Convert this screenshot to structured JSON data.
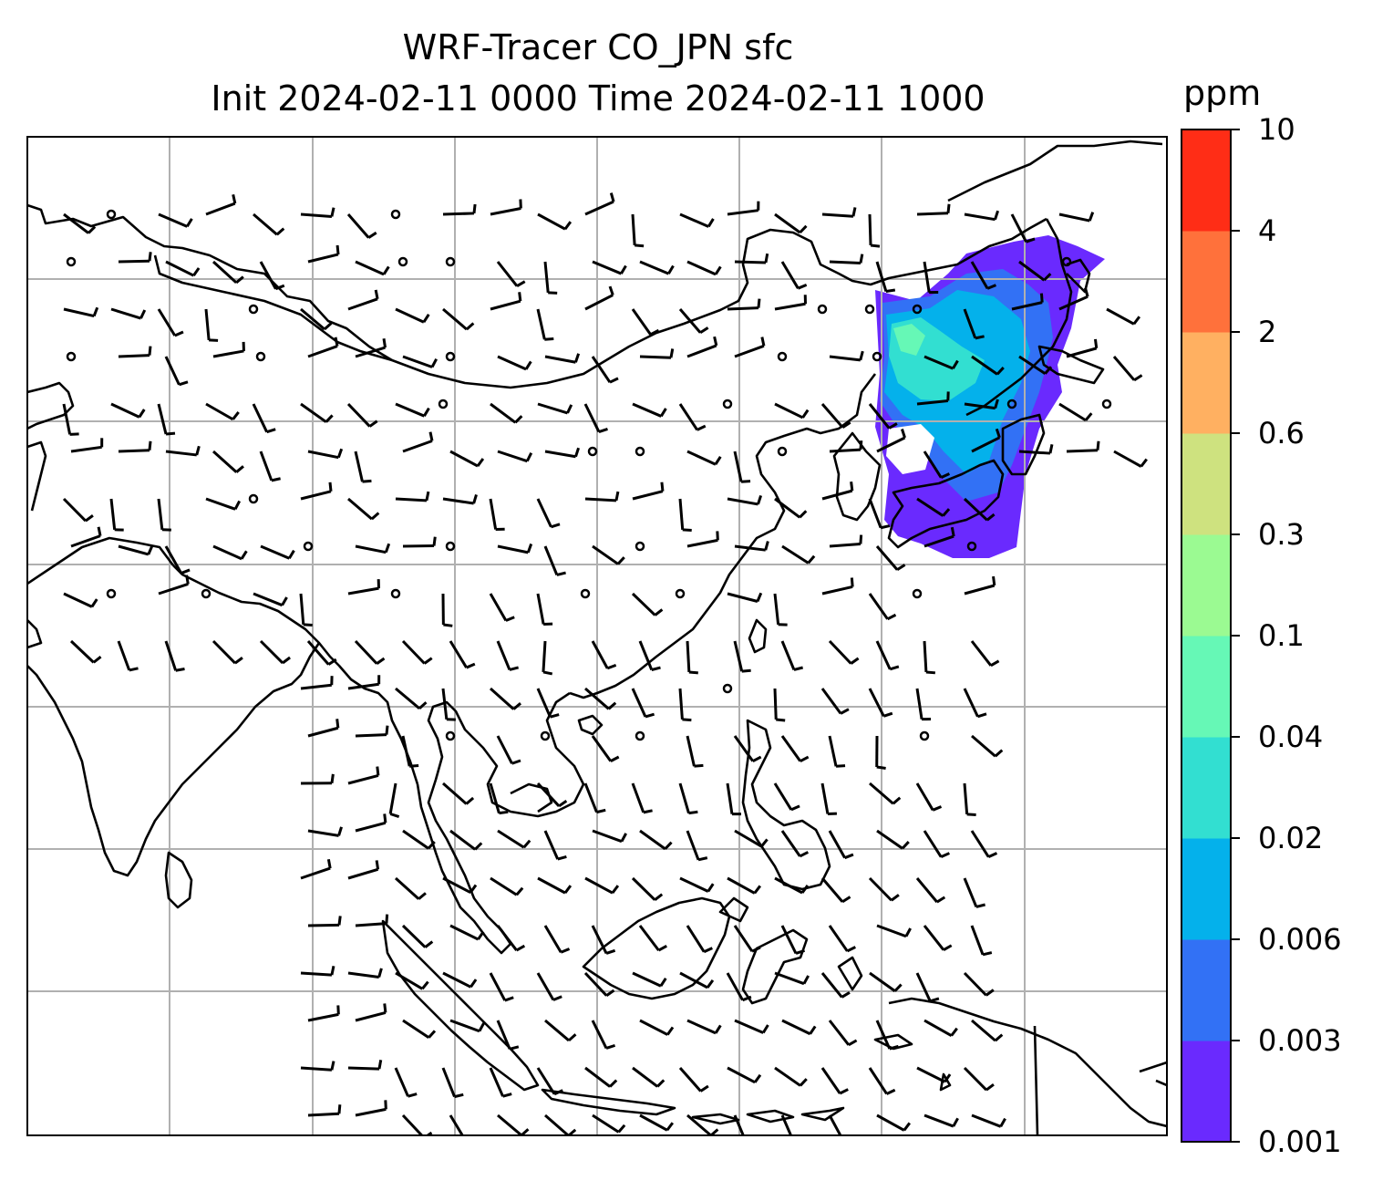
{
  "title": {
    "line1": "WRF-Tracer CO_JPN sfc",
    "line2": "Init 2024-02-11 0000 Time 2024-02-11 1000"
  },
  "colorbar": {
    "unit": "ppm",
    "levels": [
      "0.001",
      "0.003",
      "0.006",
      "0.02",
      "0.04",
      "0.1",
      "0.3",
      "0.6",
      "2",
      "4",
      "10"
    ],
    "colors": [
      "#6a2afe",
      "#3271f5",
      "#04b1eb",
      "#32dfd1",
      "#66f8b6",
      "#9bfa92",
      "#cee27f",
      "#ffb061",
      "#ff713b",
      "#ff2d16"
    ]
  },
  "map": {
    "gridlines": true,
    "gridline_color": "#b0b0b0",
    "coastline_color": "#000000",
    "plume_colors": {
      "outer": "#6a2afe",
      "mid": "#3271f5",
      "inner": "#04b1eb",
      "core": "#32dfd1",
      "peak": "#66f8b6"
    },
    "wind_barbs": "black barbs over the domain; calm winds shown as small circles"
  }
}
